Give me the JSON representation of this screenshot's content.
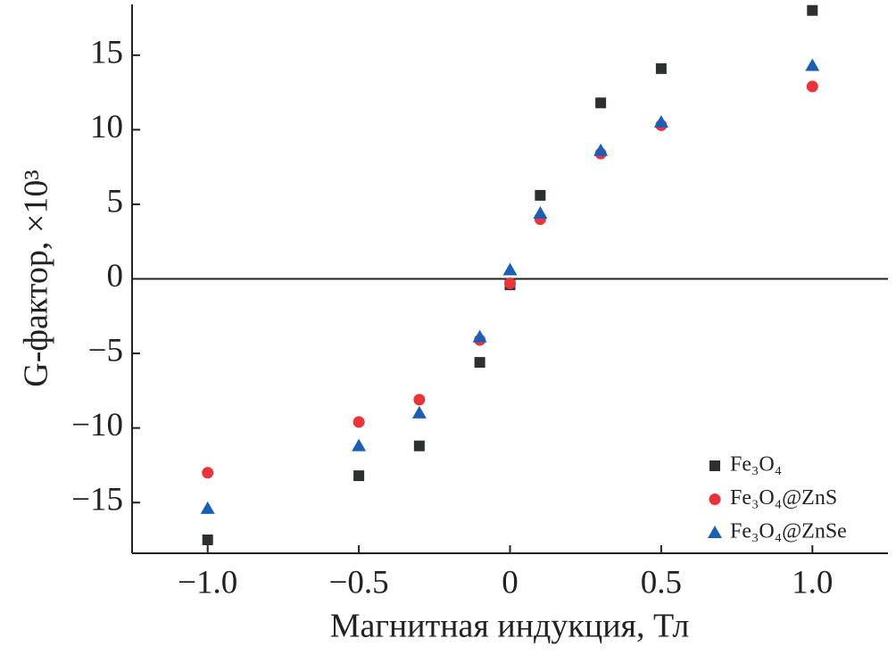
{
  "chart_data": {
    "type": "scatter",
    "x_label": "Магнитная индукция, Тл",
    "y_label": "G-фактор, ×10³",
    "x": [
      -1.0,
      -0.5,
      -0.3,
      -0.1,
      0,
      0.1,
      0.3,
      0.5,
      1.0
    ],
    "series": [
      {
        "name": "Fe₃O₄",
        "color": "#2b3030",
        "marker": "square",
        "values": [
          -17.5,
          -13.2,
          -11.2,
          -5.6,
          -0.4,
          5.6,
          11.8,
          14.1,
          18.0
        ]
      },
      {
        "name": "Fe₃O₄@ZnS",
        "color": "#e8343a",
        "marker": "circle",
        "values": [
          -13.0,
          -9.6,
          -8.1,
          -4.1,
          -0.3,
          4.0,
          8.4,
          10.3,
          12.9
        ]
      },
      {
        "name": "Fe₃O₄@ZnSe",
        "color": "#1a5fb4",
        "marker": "triangle",
        "values": [
          -15.4,
          -11.2,
          -9.0,
          -3.9,
          0.6,
          4.4,
          8.6,
          10.5,
          14.3
        ]
      }
    ],
    "xlim": [
      -1.25,
      1.25
    ],
    "ylim": [
      -18.4,
      18.4
    ],
    "xticks": [
      {
        "value": -1.0,
        "label": "−1.0"
      },
      {
        "value": -0.5,
        "label": "−0.5"
      },
      0,
      0.5,
      {
        "value": 1.0,
        "label": "1.0"
      }
    ],
    "yticks": [
      {
        "value": -15,
        "label": "−15"
      },
      {
        "value": -10,
        "label": "−10"
      },
      {
        "value": -5,
        "label": "−5"
      },
      0,
      5,
      10,
      15
    ],
    "hline": 0,
    "legend": "lower right"
  }
}
